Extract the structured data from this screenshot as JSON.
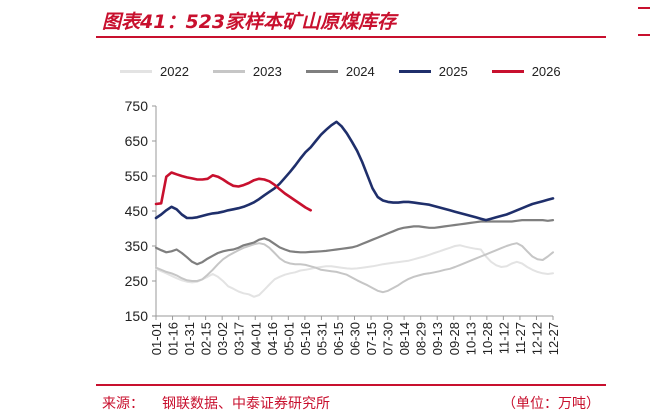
{
  "header": {
    "title": "图表41：523家样本矿山原煤库存"
  },
  "footer": {
    "source_label": "来源：",
    "source_text": "钢联数据、中泰证券研究所",
    "unit": "（单位：万吨）"
  },
  "colors": {
    "accent": "#c8102e",
    "2022": "#e3e3e3",
    "2023": "#c6c6c6",
    "2024": "#7f7f7f",
    "2025": "#1f2f6b",
    "2026": "#c8102e"
  },
  "chart_data": {
    "type": "line",
    "title": "",
    "xlabel": "",
    "ylabel": "",
    "ylim": [
      150,
      750
    ],
    "yticks": [
      "150",
      "250",
      "350",
      "450",
      "550",
      "650",
      "750"
    ],
    "x_tick_labels": [
      "01-01",
      "01-16",
      "01-31",
      "02-15",
      "03-02",
      "03-17",
      "04-01",
      "04-16",
      "05-01",
      "05-16",
      "05-31",
      "06-15",
      "06-30",
      "07-15",
      "07-30",
      "08-14",
      "08-29",
      "09-13",
      "09-28",
      "10-13",
      "10-28",
      "11-12",
      "11-27",
      "12-12",
      "12-27"
    ],
    "legend_position": "top",
    "grid": false,
    "series": [
      {
        "name": "2022",
        "values": [
          285,
          278,
          272,
          265,
          258,
          252,
          248,
          246,
          248,
          255,
          262,
          270,
          262,
          250,
          235,
          228,
          220,
          215,
          212,
          205,
          210,
          225,
          240,
          255,
          262,
          268,
          272,
          275,
          280,
          282,
          285,
          288,
          290,
          292,
          292,
          290,
          288,
          286,
          285,
          286,
          288,
          290,
          292,
          295,
          298,
          300,
          302,
          304,
          306,
          308,
          312,
          316,
          320,
          325,
          330,
          335,
          340,
          345,
          350,
          352,
          348,
          345,
          342,
          340,
          320,
          305,
          295,
          290,
          292,
          300,
          305,
          300,
          290,
          282,
          276,
          272,
          270,
          272
        ]
      },
      {
        "name": "2023",
        "values": [
          288,
          282,
          276,
          272,
          266,
          258,
          252,
          250,
          250,
          255,
          268,
          282,
          298,
          312,
          322,
          330,
          338,
          345,
          350,
          355,
          358,
          355,
          345,
          330,
          315,
          305,
          300,
          298,
          298,
          296,
          292,
          288,
          282,
          280,
          278,
          276,
          272,
          268,
          260,
          252,
          245,
          238,
          230,
          222,
          218,
          222,
          230,
          238,
          248,
          256,
          262,
          266,
          270,
          272,
          275,
          278,
          282,
          285,
          290,
          296,
          302,
          308,
          314,
          320,
          326,
          332,
          338,
          344,
          350,
          355,
          358,
          350,
          335,
          320,
          312,
          310,
          320,
          332
        ]
      },
      {
        "name": "2024",
        "values": [
          345,
          338,
          332,
          335,
          340,
          330,
          318,
          305,
          298,
          304,
          314,
          322,
          330,
          335,
          338,
          340,
          345,
          352,
          356,
          360,
          368,
          372,
          366,
          356,
          346,
          340,
          335,
          333,
          332,
          332,
          333,
          334,
          335,
          336,
          338,
          340,
          342,
          344,
          346,
          350,
          356,
          362,
          368,
          374,
          380,
          386,
          392,
          398,
          402,
          404,
          406,
          406,
          404,
          402,
          402,
          404,
          406,
          408,
          410,
          412,
          414,
          416,
          418,
          420,
          420,
          420,
          420,
          420,
          420,
          420,
          422,
          424,
          424,
          424,
          424,
          424,
          422,
          424
        ]
      },
      {
        "name": "2025",
        "values": [
          430,
          440,
          452,
          462,
          455,
          440,
          430,
          430,
          432,
          436,
          440,
          443,
          445,
          448,
          452,
          455,
          458,
          462,
          468,
          475,
          484,
          495,
          505,
          515,
          528,
          545,
          562,
          580,
          600,
          618,
          632,
          650,
          668,
          682,
          695,
          705,
          692,
          672,
          648,
          622,
          590,
          552,
          515,
          490,
          480,
          476,
          474,
          474,
          476,
          476,
          474,
          472,
          470,
          468,
          464,
          460,
          456,
          452,
          448,
          444,
          440,
          436,
          432,
          428,
          424,
          428,
          432,
          436,
          440,
          446,
          452,
          458,
          464,
          470,
          474,
          478,
          482,
          486
        ]
      },
      {
        "name": "2026",
        "values": [
          470,
          472,
          548,
          560,
          555,
          550,
          546,
          543,
          540,
          540,
          542,
          552,
          548,
          540,
          530,
          522,
          520,
          524,
          530,
          538,
          542,
          540,
          535,
          525,
          512,
          500,
          490,
          480,
          470,
          460,
          452
        ]
      }
    ]
  }
}
